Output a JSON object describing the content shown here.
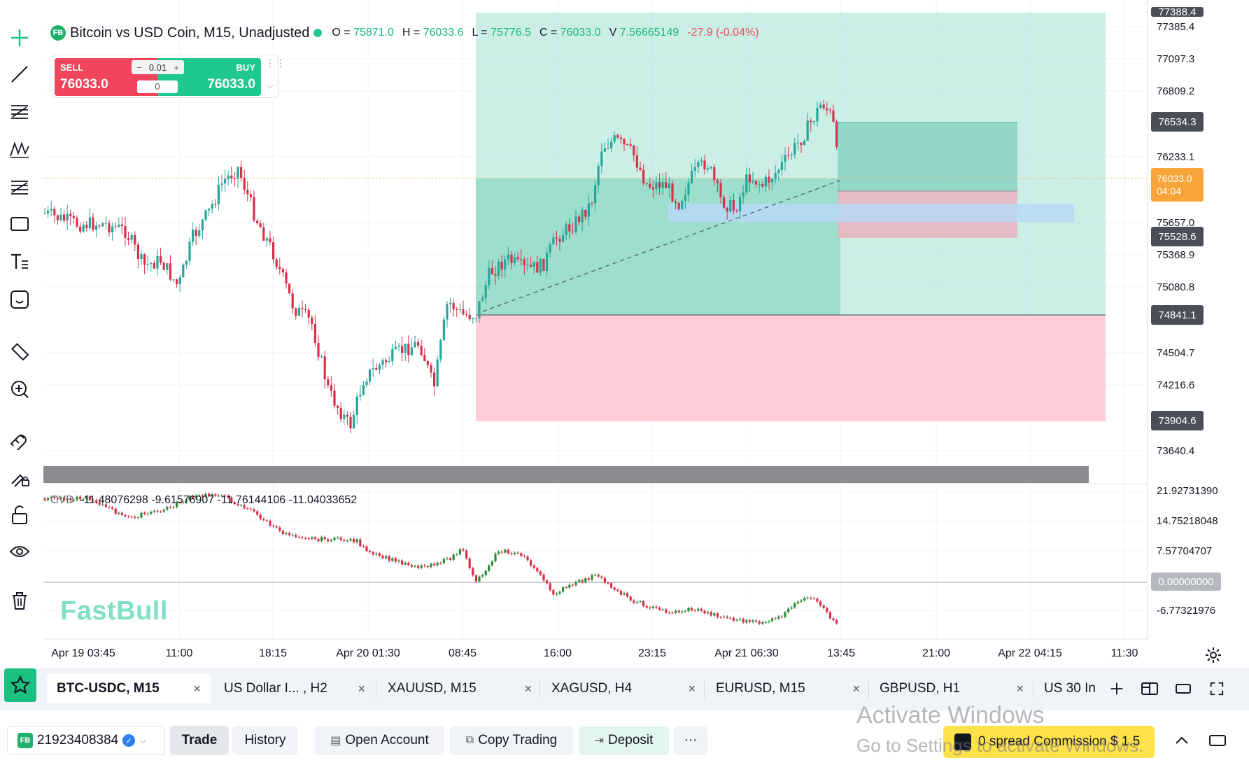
{
  "legend": {
    "badge": "FB",
    "title": "Bitcoin vs USD Coin, M15, Unadjusted",
    "ohlc": [
      {
        "k": "O = ",
        "v": "75871.0"
      },
      {
        "k": "H = ",
        "v": "76033.6"
      },
      {
        "k": "L = ",
        "v": "75776.5"
      },
      {
        "k": "C = ",
        "v": "76033.0"
      },
      {
        "k": "V ",
        "v": "7.56665149"
      }
    ],
    "change": "-27.9 (-0.04%)"
  },
  "trade_widget": {
    "sell_label": "SELL",
    "sell_price": "76033.0",
    "buy_label": "BUY",
    "buy_price": "76033.0",
    "quantity": "0.01",
    "minus": "−",
    "plus": "+",
    "spread": "0"
  },
  "price_axis": {
    "labels": [
      "77385.4",
      "77097.3",
      "76809.2",
      "76233.1",
      "75657.0",
      "75368.9",
      "75080.8",
      "74504.7",
      "74216.6",
      "73640.4"
    ],
    "top_clipped": "77388.4",
    "tags": [
      "76534.3",
      "75528.6",
      "74841.1",
      "73904.6"
    ],
    "current_price": "76033.0",
    "countdown": "04:04"
  },
  "cvd_axis": {
    "labels": [
      "21.92731390",
      "14.75218048",
      "7.57704707",
      "-6.77321976"
    ],
    "zero_tag": "0.00000000"
  },
  "cvd_legend": {
    "name": "CVD",
    "values": [
      "-11.48076298",
      "-9.61576907",
      "-11.76144106",
      "-11.04033652"
    ]
  },
  "time_axis": [
    "Apr 19 03:45",
    "11:00",
    "18:15",
    "Apr 20 01:30",
    "08:45",
    "16:00",
    "23:15",
    "Apr 21 06:30",
    "13:45",
    "21:00",
    "Apr 22 04:15",
    "11:30"
  ],
  "watermark": "FastBull",
  "tabs": [
    {
      "label": "BTC-USDC, M15",
      "active": true
    },
    {
      "label": "US Dollar I... , H2",
      "active": false
    },
    {
      "label": "XAUUSD, M15",
      "active": false
    },
    {
      "label": "XAGUSD, H4",
      "active": false
    },
    {
      "label": "EURUSD, M15",
      "active": false
    },
    {
      "label": "GBPUSD, H1",
      "active": false
    },
    {
      "label": "US 30 In",
      "active": false
    }
  ],
  "tab_close": "×",
  "bottom_bar": {
    "account_badge": "FB",
    "account_id": "21923408384",
    "verified": "✓",
    "trade": "Trade",
    "history": "History",
    "open_account": "Open Account",
    "copy_trading": "Copy Trading",
    "deposit": "Deposit",
    "more": "···",
    "promo": "0 spread Commission $ 1.5"
  },
  "activate_windows": {
    "line1": "Activate Windows",
    "line2": "Go to Settings to activate Windows."
  },
  "colors": {
    "up": "#26a69a",
    "down": "#d6304a",
    "profit_zone": "#a9e4d3",
    "loss_zone": "#ffc9d5",
    "accent": "#19c080"
  }
}
